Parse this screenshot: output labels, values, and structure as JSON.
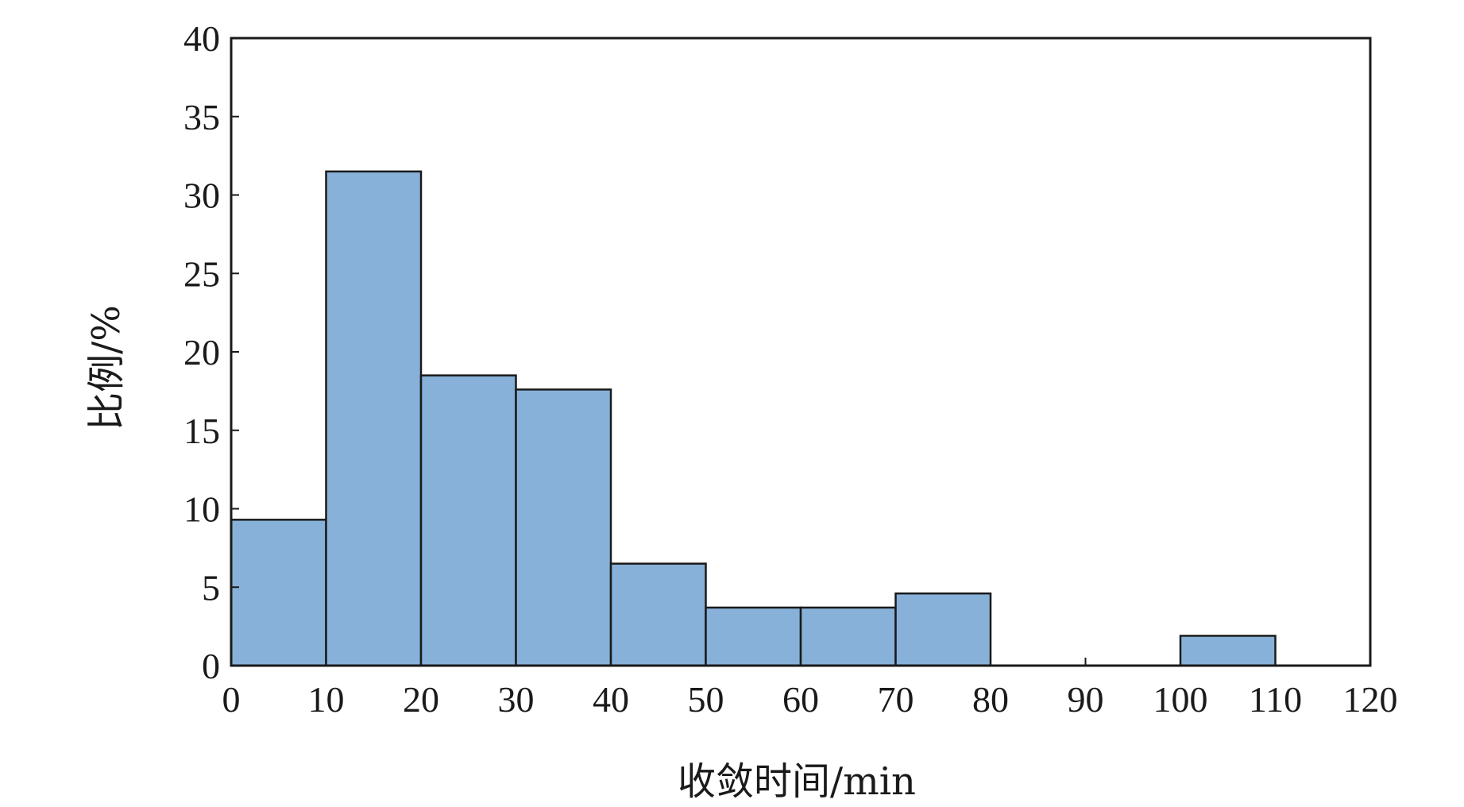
{
  "chart_data": {
    "type": "bar",
    "subtype": "histogram",
    "title": "",
    "xlabel": "收敛时间/min",
    "ylabel": "比例/%",
    "bins": [
      [
        0,
        10
      ],
      [
        10,
        20
      ],
      [
        20,
        30
      ],
      [
        30,
        40
      ],
      [
        40,
        50
      ],
      [
        50,
        60
      ],
      [
        60,
        70
      ],
      [
        70,
        80
      ],
      [
        80,
        90
      ],
      [
        90,
        100
      ],
      [
        100,
        110
      ],
      [
        110,
        120
      ]
    ],
    "values": [
      9.3,
      31.5,
      18.5,
      17.6,
      6.5,
      3.7,
      3.7,
      4.6,
      0,
      0,
      1.9,
      0
    ],
    "xlim": [
      0,
      120
    ],
    "ylim": [
      0,
      40
    ],
    "xticks": [
      0,
      10,
      20,
      30,
      40,
      50,
      60,
      70,
      80,
      90,
      100,
      110,
      120
    ],
    "xtick_labels": [
      "0",
      "10",
      "20",
      "30",
      "40",
      "50",
      "60",
      "70",
      "80",
      "90",
      "100",
      "110",
      "120"
    ],
    "yticks": [
      0,
      5,
      10,
      15,
      20,
      25,
      30,
      35,
      40
    ],
    "ytick_labels": [
      "0",
      "5",
      "10",
      "15",
      "20",
      "25",
      "30",
      "35",
      "40"
    ],
    "grid": false,
    "bar_color": "#87b1d8",
    "edge_color": "#1a1a1a"
  }
}
